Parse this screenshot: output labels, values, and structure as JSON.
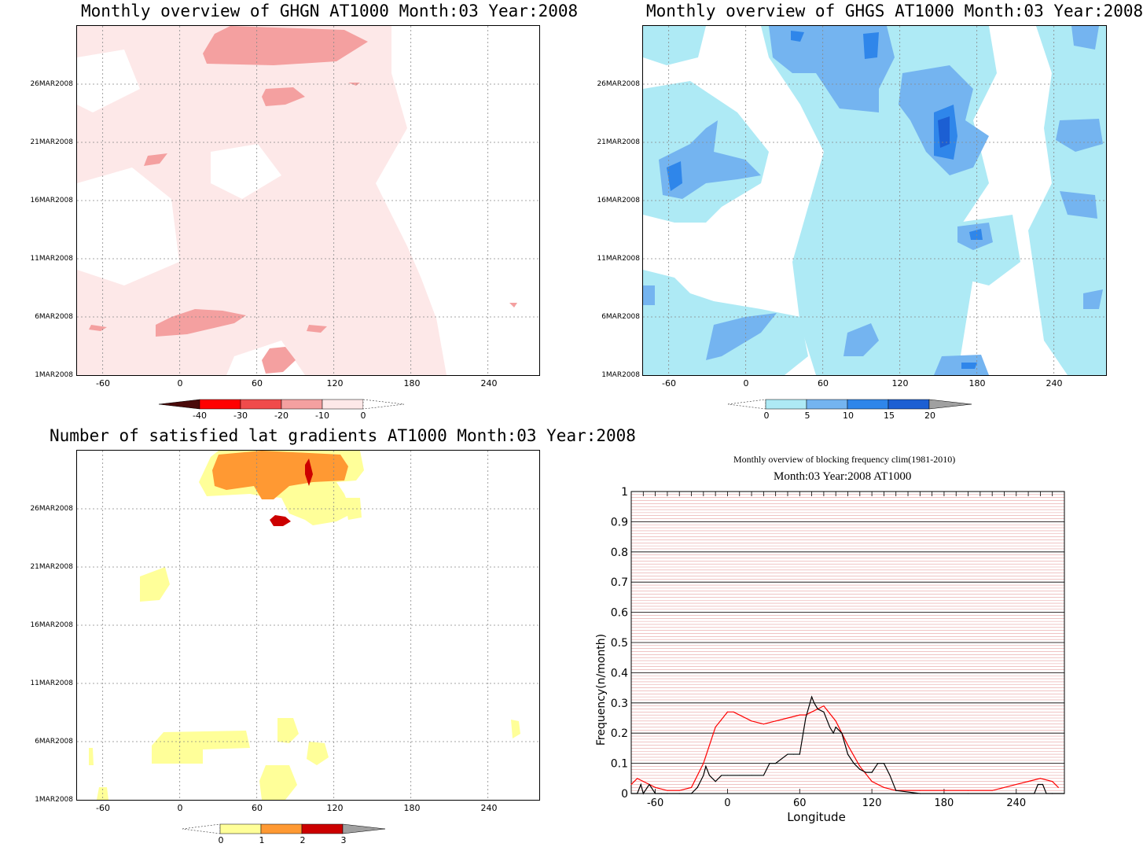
{
  "charts": {
    "ghgn": {
      "title": "Monthly overview of GHGN AT1000 Month:03 Year:2008",
      "ytick_labels": [
        "26MAR2008",
        "21MAR2008",
        "16MAR2008",
        "11MAR2008",
        "6MAR2008",
        "1MAR2008"
      ],
      "xtick_labels": [
        "-60",
        "0",
        "60",
        "120",
        "180",
        "240"
      ],
      "colorbar_labels": [
        "-40",
        "-30",
        "-20",
        "-10",
        "0"
      ],
      "colors": [
        "#4a0a0a",
        "#ff0000",
        "#f04b4b",
        "#f4a0a0",
        "#fde8e8"
      ]
    },
    "ghgs": {
      "title": "Monthly overview of GHGS AT1000 Month:03 Year:2008",
      "ytick_labels": [
        "26MAR2008",
        "21MAR2008",
        "16MAR2008",
        "11MAR2008",
        "6MAR2008",
        "1MAR2008"
      ],
      "xtick_labels": [
        "-60",
        "0",
        "60",
        "120",
        "180",
        "240"
      ],
      "colorbar_labels": [
        "0",
        "5",
        "10",
        "15",
        "20"
      ],
      "colors": [
        "#aeeaf5",
        "#74b4f0",
        "#2f86ea",
        "#1c5fd3",
        "#a0a0a0"
      ]
    },
    "grad": {
      "title": "Number of satisfied lat gradients AT1000 Month:03 Year:2008",
      "ytick_labels": [
        "26MAR2008",
        "21MAR2008",
        "16MAR2008",
        "11MAR2008",
        "6MAR2008",
        "1MAR2008"
      ],
      "xtick_labels": [
        "-60",
        "0",
        "60",
        "120",
        "180",
        "240"
      ],
      "colorbar_labels": [
        "0",
        "1",
        "2",
        "3"
      ],
      "colors": [
        "#ffff99",
        "#ff9933",
        "#cc0000",
        "#a0a0a0"
      ]
    },
    "freq": {
      "title_line1": "Monthly overview of blocking frequency clim(1981-2010)",
      "title_line2": "Month:03 Year:2008  AT1000",
      "ylabel": "Frequency(n/month)",
      "xlabel": "Longitude",
      "ytick_labels": [
        "0",
        "0.1",
        "0.2",
        "0.3",
        "0.4",
        "0.5",
        "0.6",
        "0.7",
        "0.8",
        "0.9",
        "1"
      ],
      "xtick_labels": [
        "-60",
        "0",
        "60",
        "120",
        "180",
        "240"
      ]
    }
  },
  "chart_data": [
    {
      "type": "heatmap",
      "title": "Monthly overview of GHGN AT1000 Month:03 Year:2008",
      "x_axis": "longitude",
      "xlim": [
        -80,
        280
      ],
      "y_axis": "date",
      "ylim": [
        "1MAR2008",
        "31MAR2008"
      ],
      "levels": [
        -40,
        -30,
        -20,
        -10,
        0
      ],
      "grid": true
    },
    {
      "type": "heatmap",
      "title": "Monthly overview of GHGS AT1000 Month:03 Year:2008",
      "x_axis": "longitude",
      "xlim": [
        -80,
        280
      ],
      "y_axis": "date",
      "ylim": [
        "1MAR2008",
        "31MAR2008"
      ],
      "levels": [
        0,
        5,
        10,
        15,
        20
      ],
      "grid": true
    },
    {
      "type": "heatmap",
      "title": "Number of satisfied lat gradients AT1000 Month:03 Year:2008",
      "x_axis": "longitude",
      "xlim": [
        -80,
        280
      ],
      "y_axis": "date",
      "ylim": [
        "1MAR2008",
        "31MAR2008"
      ],
      "levels": [
        0,
        1,
        2,
        3
      ],
      "grid": true
    },
    {
      "type": "line",
      "title": "Monthly overview of blocking frequency clim(1981-2010)",
      "subtitle": "Month:03 Year:2008  AT1000",
      "xlabel": "Longitude",
      "ylabel": "Frequency(n/month)",
      "xlim": [
        -80,
        280
      ],
      "ylim": [
        0,
        1
      ],
      "series": [
        {
          "color": "#ff0000",
          "x": [
            -80,
            -75,
            -70,
            -60,
            -50,
            -40,
            -30,
            -20,
            -10,
            0,
            5,
            10,
            20,
            30,
            40,
            50,
            60,
            65,
            70,
            75,
            80,
            90,
            100,
            110,
            120,
            130,
            140,
            160,
            180,
            200,
            220,
            240,
            250,
            260,
            270,
            275
          ],
          "y": [
            0.03,
            0.05,
            0.04,
            0.02,
            0.01,
            0.01,
            0.02,
            0.1,
            0.22,
            0.27,
            0.27,
            0.26,
            0.24,
            0.23,
            0.24,
            0.25,
            0.26,
            0.26,
            0.27,
            0.28,
            0.29,
            0.24,
            0.16,
            0.09,
            0.04,
            0.02,
            0.01,
            0.01,
            0.01,
            0.01,
            0.01,
            0.03,
            0.04,
            0.05,
            0.04,
            0.02
          ]
        },
        {
          "color": "#000000",
          "x": [
            -80,
            -75,
            -72,
            -70,
            -65,
            -60,
            -55,
            -50,
            -40,
            -30,
            -25,
            -20,
            -18,
            -15,
            -10,
            -5,
            0,
            10,
            20,
            30,
            35,
            40,
            50,
            55,
            60,
            65,
            70,
            72,
            75,
            80,
            85,
            88,
            90,
            95,
            100,
            105,
            110,
            115,
            120,
            125,
            130,
            135,
            140,
            160,
            180,
            200,
            240,
            255,
            258,
            262,
            265,
            270,
            280
          ],
          "y": [
            0.0,
            0.0,
            0.03,
            0.0,
            0.03,
            0.0,
            0.0,
            0.0,
            0.0,
            0.0,
            0.02,
            0.06,
            0.09,
            0.06,
            0.04,
            0.06,
            0.06,
            0.06,
            0.06,
            0.06,
            0.1,
            0.1,
            0.13,
            0.13,
            0.13,
            0.25,
            0.32,
            0.3,
            0.28,
            0.27,
            0.22,
            0.2,
            0.22,
            0.2,
            0.13,
            0.1,
            0.08,
            0.07,
            0.07,
            0.1,
            0.1,
            0.06,
            0.01,
            0.0,
            0.0,
            0.0,
            0.0,
            0.0,
            0.03,
            0.03,
            0.0,
            0.0,
            0.0
          ]
        }
      ]
    }
  ]
}
